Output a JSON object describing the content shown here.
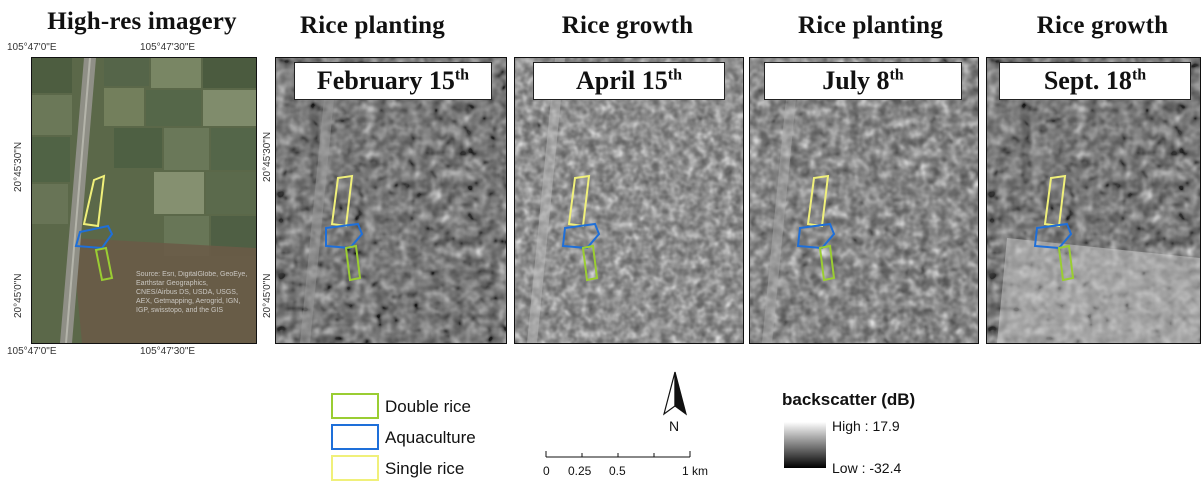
{
  "headings": {
    "highres": "High-res imagery",
    "p1": "Rice planting",
    "p2": "Rice growth",
    "p3": "Rice planting",
    "p4": "Rice growth"
  },
  "dates": [
    {
      "main": "February 15",
      "sup": "th"
    },
    {
      "main": "April 15",
      "sup": "th"
    },
    {
      "main": "July 8",
      "sup": "th"
    },
    {
      "main": "Sept. 18",
      "sup": "th"
    }
  ],
  "coords": {
    "lon_left": "105°47'0\"E",
    "lon_right": "105°47'30\"E",
    "lat_top": "20°45'30\"N",
    "lat_bottom": "20°45'0\"N"
  },
  "attribution": "Source: Esri, DigitalGlobe, GeoEye, Earthstar Geographics, CNES/Airbus DS, USDA, USGS, AEX, Getmapping, Aerogrid, IGN, IGP, swisstopo, and the GIS",
  "legend": {
    "items": [
      {
        "label": "Double rice",
        "color": "#9ACD32"
      },
      {
        "label": "Aquaculture",
        "color": "#1E6FD9"
      },
      {
        "label": "Single rice",
        "color": "#F0F07A"
      }
    ]
  },
  "north": {
    "label": "N"
  },
  "scalebar": {
    "ticks": [
      "0",
      "0.25",
      "0.5",
      "1 km"
    ]
  },
  "backscatter": {
    "title": "backscatter (dB)",
    "high": "High : 17.9",
    "low": "Low : -32.4"
  }
}
